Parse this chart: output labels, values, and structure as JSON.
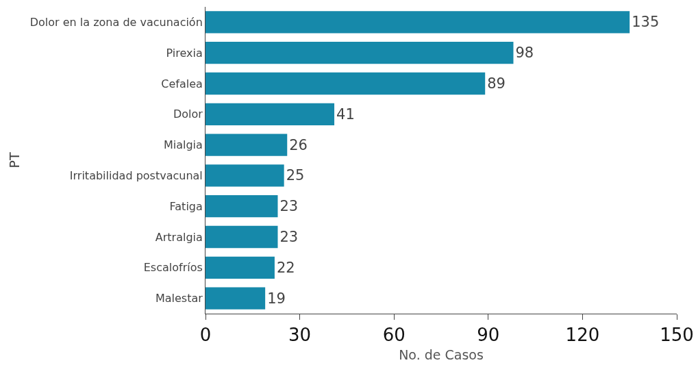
{
  "chart_data": {
    "type": "bar",
    "orientation": "horizontal",
    "xlabel": "No. de Casos",
    "ylabel": "PT",
    "categories": [
      "Dolor en la zona de vacunación",
      "Pirexia",
      "Cefalea",
      "Dolor",
      "Mialgia",
      "Irritabilidad postvacunal",
      "Fatiga",
      "Artralgia",
      "Escalofríos",
      "Malestar"
    ],
    "values": [
      135,
      98,
      89,
      41,
      26,
      25,
      23,
      23,
      22,
      19
    ],
    "color": "#1689aa",
    "xlim": [
      0,
      150
    ],
    "xticks": [
      0,
      30,
      60,
      90,
      120,
      150
    ],
    "data_labels": true,
    "grid": false,
    "legend": false
  }
}
